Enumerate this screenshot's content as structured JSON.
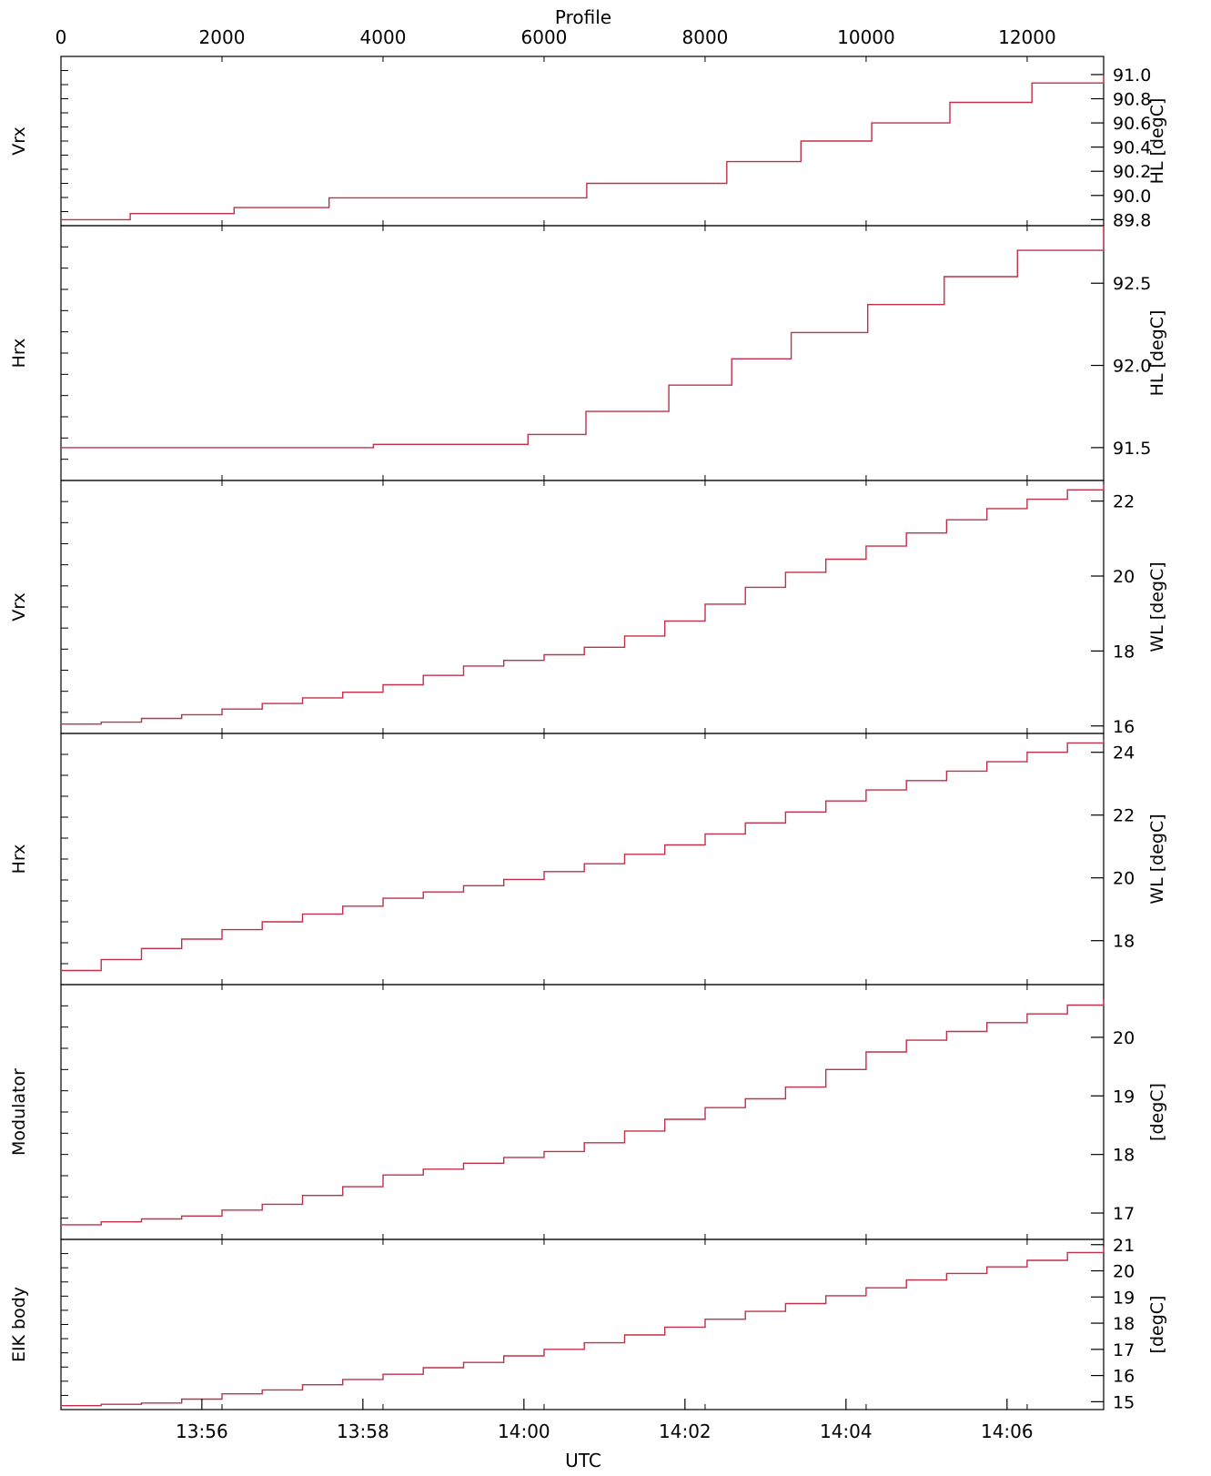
{
  "figure": {
    "top_axis_label": "Profile",
    "bottom_axis_label": "UTC",
    "line_color": "#c0304a",
    "axis_color": "#000000"
  },
  "chart_data": [
    {
      "type": "line",
      "panel": 1,
      "left_label": "Vrx",
      "right_label": "HL [degC]",
      "ylim": [
        89.75,
        91.15
      ],
      "yticks": [
        "89.8",
        "90.0",
        "90.2",
        "90.4",
        "90.6",
        "90.8",
        "91.0"
      ],
      "ytick_values": [
        89.8,
        90.0,
        90.2,
        90.4,
        90.6,
        90.8,
        91.0
      ],
      "series": [
        {
          "x": [
            0,
            860,
            2150,
            3330,
            5500,
            6530,
            7780,
            8270,
            8920,
            9190,
            10070,
            11040,
            12060,
            12950
          ],
          "values": [
            89.8,
            89.85,
            89.9,
            89.98,
            89.98,
            90.1,
            90.1,
            90.28,
            90.28,
            90.45,
            90.6,
            90.77,
            90.93,
            91.0
          ]
        }
      ]
    },
    {
      "type": "line",
      "panel": 2,
      "left_label": "Hrx",
      "right_label": "HL [degC]",
      "ylim": [
        91.3,
        92.85
      ],
      "yticks": [
        "91.5",
        "92.0",
        "92.5"
      ],
      "ytick_values": [
        91.5,
        92.0,
        92.5
      ],
      "series": [
        {
          "x": [
            0,
            3880,
            5800,
            6520,
            7550,
            8330,
            9070,
            10020,
            10970,
            11880,
            12950
          ],
          "values": [
            91.5,
            91.52,
            91.58,
            91.72,
            91.88,
            92.04,
            92.2,
            92.37,
            92.54,
            92.7,
            92.85
          ]
        }
      ]
    },
    {
      "type": "line",
      "panel": 3,
      "left_label": "Vrx",
      "right_label": "WL [degC]",
      "ylim": [
        15.8,
        22.55
      ],
      "yticks": [
        "16",
        "18",
        "20",
        "22"
      ],
      "ytick_values": [
        16,
        18,
        20,
        22
      ],
      "series": [
        {
          "x": [
            0,
            500,
            1000,
            1500,
            2000,
            2500,
            3000,
            3500,
            4000,
            4500,
            5000,
            5500,
            6000,
            6500,
            7000,
            7500,
            8000,
            8500,
            9000,
            9500,
            10000,
            10500,
            11000,
            11500,
            12000,
            12500,
            12950
          ],
          "values": [
            16.05,
            16.1,
            16.2,
            16.3,
            16.45,
            16.6,
            16.75,
            16.9,
            17.1,
            17.35,
            17.6,
            17.75,
            17.9,
            18.1,
            18.4,
            18.8,
            19.25,
            19.7,
            20.1,
            20.45,
            20.8,
            21.15,
            21.5,
            21.8,
            22.05,
            22.3,
            22.45
          ]
        }
      ]
    },
    {
      "type": "line",
      "panel": 4,
      "left_label": "Hrx",
      "right_label": "WL [degC]",
      "ylim": [
        16.6,
        24.6
      ],
      "yticks": [
        "18",
        "20",
        "22",
        "24"
      ],
      "ytick_values": [
        18,
        20,
        22,
        24
      ],
      "series": [
        {
          "x": [
            0,
            500,
            1000,
            1500,
            2000,
            2500,
            3000,
            3500,
            4000,
            4500,
            5000,
            5500,
            6000,
            6500,
            7000,
            7500,
            8000,
            8500,
            9000,
            9500,
            10000,
            10500,
            11000,
            11500,
            12000,
            12500,
            12950
          ],
          "values": [
            17.05,
            17.4,
            17.75,
            18.05,
            18.35,
            18.6,
            18.85,
            19.1,
            19.35,
            19.55,
            19.75,
            19.95,
            20.2,
            20.45,
            20.75,
            21.05,
            21.4,
            21.75,
            22.1,
            22.45,
            22.8,
            23.1,
            23.4,
            23.7,
            24.0,
            24.3,
            24.4
          ]
        }
      ]
    },
    {
      "type": "line",
      "panel": 5,
      "left_label": "Modulator",
      "right_label": "[degC]",
      "ylim": [
        16.55,
        20.9
      ],
      "yticks": [
        "17",
        "18",
        "19",
        "20"
      ],
      "ytick_values": [
        17,
        18,
        19,
        20
      ],
      "series": [
        {
          "x": [
            0,
            500,
            1000,
            1500,
            2000,
            2500,
            3000,
            3500,
            4000,
            4500,
            5000,
            5500,
            6000,
            6500,
            7000,
            7500,
            8000,
            8500,
            9000,
            9500,
            10000,
            10500,
            11000,
            11500,
            12000,
            12500,
            12950
          ],
          "values": [
            16.8,
            16.85,
            16.9,
            16.95,
            17.05,
            17.15,
            17.3,
            17.45,
            17.65,
            17.75,
            17.85,
            17.95,
            18.05,
            18.2,
            18.4,
            18.6,
            18.8,
            18.95,
            19.15,
            19.45,
            19.75,
            19.95,
            20.1,
            20.25,
            20.4,
            20.55,
            20.65
          ]
        }
      ]
    },
    {
      "type": "line",
      "panel": 6,
      "left_label": "EIK body",
      "right_label": "[degC]",
      "ylim": [
        14.7,
        21.2
      ],
      "yticks": [
        "15",
        "16",
        "17",
        "18",
        "19",
        "20",
        "21"
      ],
      "ytick_values": [
        15,
        16,
        17,
        18,
        19,
        20,
        21
      ],
      "series": [
        {
          "x": [
            0,
            500,
            1000,
            1500,
            2000,
            2500,
            3000,
            3500,
            4000,
            4500,
            5000,
            5500,
            6000,
            6500,
            7000,
            7500,
            8000,
            8500,
            9000,
            9500,
            10000,
            10500,
            11000,
            11500,
            12000,
            12500,
            12950
          ],
          "values": [
            14.85,
            14.9,
            14.95,
            15.1,
            15.3,
            15.45,
            15.65,
            15.85,
            16.05,
            16.3,
            16.5,
            16.75,
            17.0,
            17.25,
            17.55,
            17.85,
            18.15,
            18.45,
            18.75,
            19.05,
            19.35,
            19.65,
            19.9,
            20.15,
            20.4,
            20.7,
            20.9
          ]
        }
      ]
    }
  ],
  "x_axis": {
    "profile_ticks": [
      "0",
      "2000",
      "4000",
      "6000",
      "8000",
      "10000",
      "12000"
    ],
    "profile_tick_values": [
      0,
      2000,
      4000,
      6000,
      8000,
      10000,
      12000
    ],
    "xlim": [
      0,
      12950
    ],
    "utc_ticks": [
      "13:56",
      "13:58",
      "14:00",
      "14:02",
      "14:04",
      "14:06"
    ],
    "utc_tick_positions": [
      1750,
      3750,
      5750,
      7750,
      9750,
      11750
    ]
  }
}
